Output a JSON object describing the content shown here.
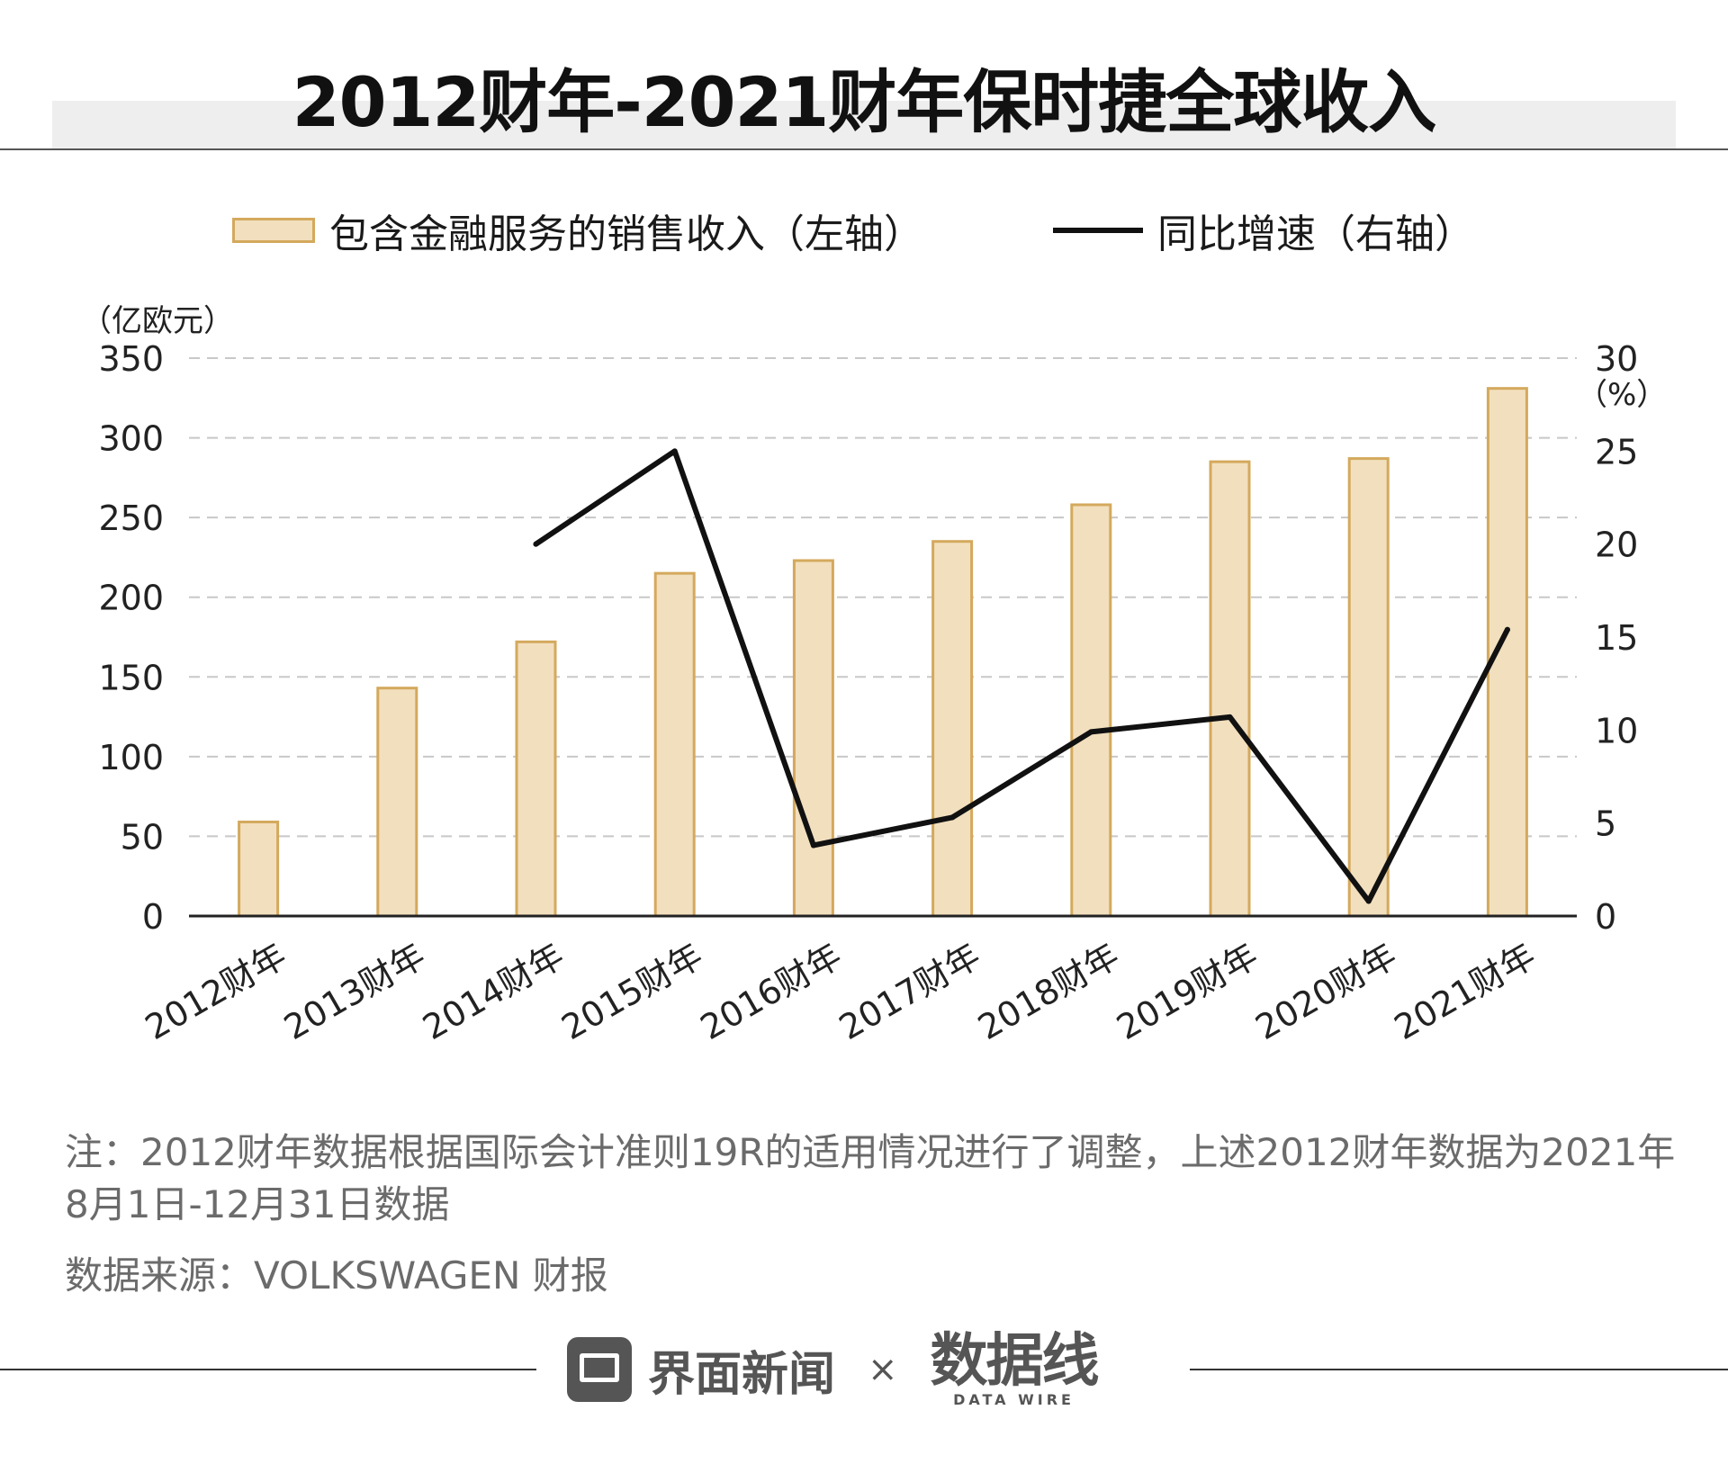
{
  "title": "2012财年-2021财年保时捷全球收入",
  "legend": {
    "bar_label": "包含金融服务的销售收入（左轴）",
    "line_label": "同比增速（右轴）"
  },
  "colors": {
    "bar_fill": "#f2dfbe",
    "bar_stroke": "#d4a95d",
    "line": "#111111",
    "grid": "#c8c8c8"
  },
  "chart_data": {
    "type": "bar",
    "categories": [
      "2012财年",
      "2013财年",
      "2014财年",
      "2015财年",
      "2016财年",
      "2017财年",
      "2018财年",
      "2019财年",
      "2020财年",
      "2021财年"
    ],
    "series": [
      {
        "name": "包含金融服务的销售收入（左轴）",
        "type": "bar",
        "axis": "left",
        "values": [
          59,
          143,
          172,
          215,
          223,
          235,
          258,
          285,
          287,
          331
        ]
      },
      {
        "name": "同比增速（右轴）",
        "type": "line",
        "axis": "right",
        "values": [
          null,
          null,
          20.0,
          25.0,
          3.8,
          5.3,
          9.9,
          10.7,
          0.8,
          15.4
        ]
      }
    ],
    "left_axis": {
      "unit": "（亿欧元）",
      "ylim": [
        0,
        350
      ],
      "ticks": [
        0,
        50,
        100,
        150,
        200,
        250,
        300,
        350
      ]
    },
    "right_axis": {
      "unit": "（%）",
      "ylim": [
        0,
        30
      ],
      "ticks": [
        0,
        5,
        10,
        15,
        20,
        25,
        30
      ]
    },
    "grid": true,
    "legend_position": "top"
  },
  "note": "注：2012财年数据根据国际会计准则19R的适用情况进行了调整，上述2012财年数据为2021年8月1日-12月31日数据",
  "source": "数据来源：VOLKSWAGEN 财报",
  "footer": {
    "brand": "界面新闻",
    "times": "×",
    "partner_mark": "数据线",
    "partner_sub": "DATA WIRE"
  }
}
